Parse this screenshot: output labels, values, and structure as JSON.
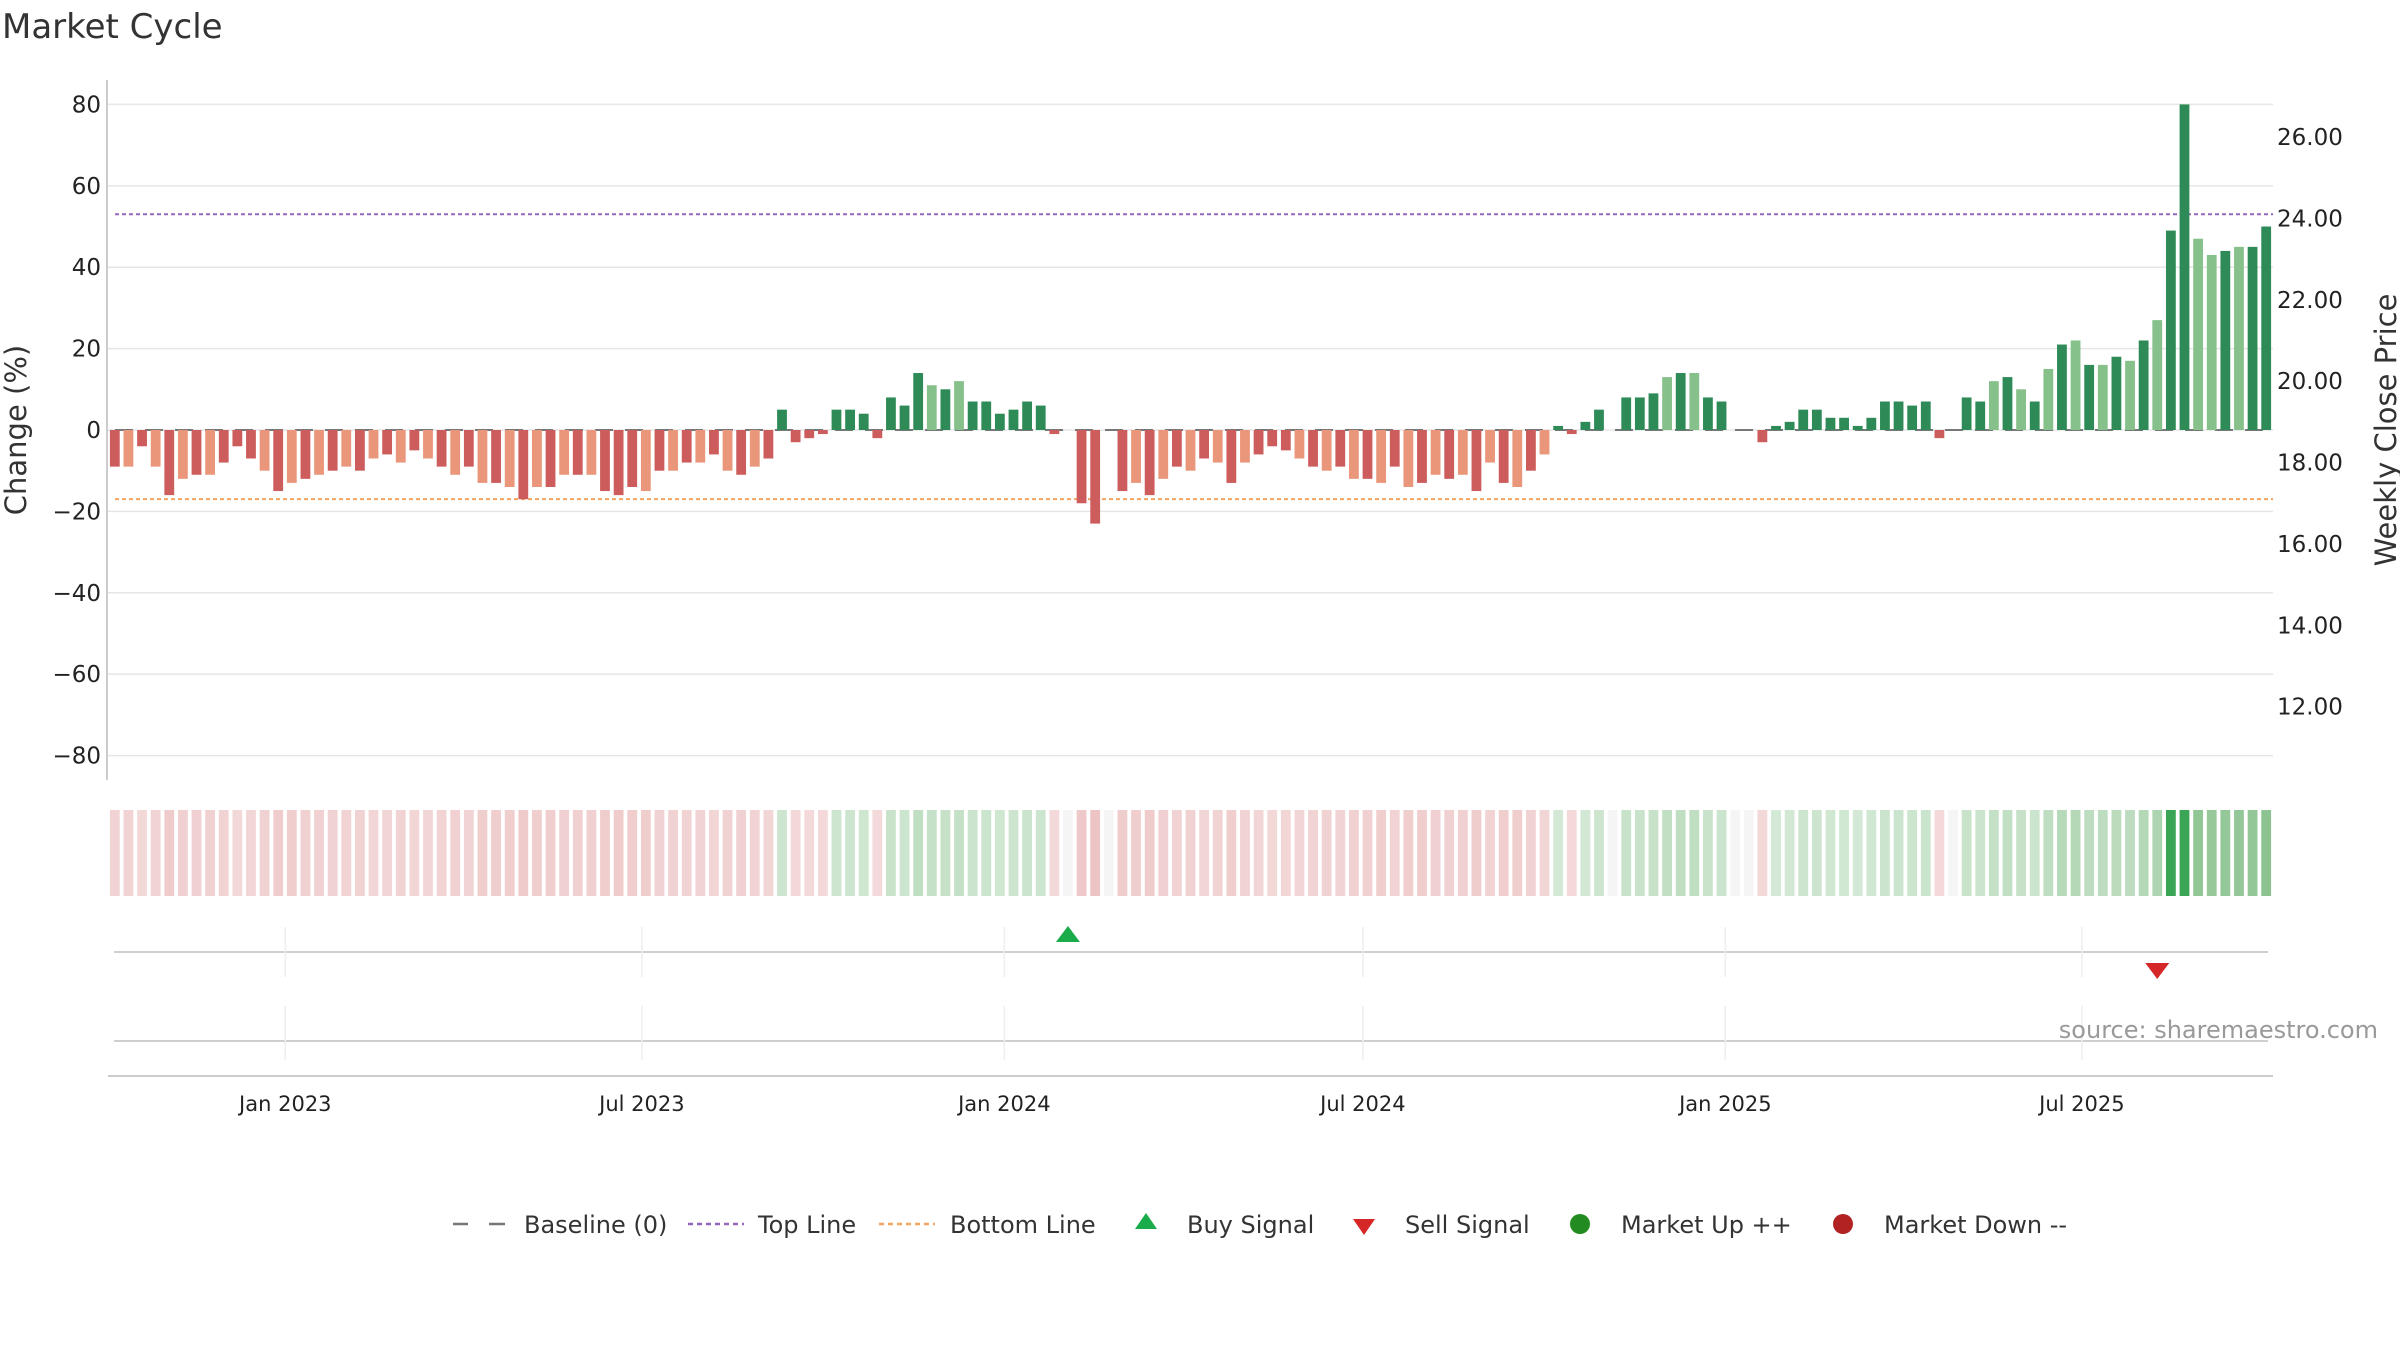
{
  "chart_data": {
    "type": "bar",
    "title": "Market Cycle",
    "ylabel_left": "Change (%)",
    "ylabel_right": "Weekly Close Price",
    "ylim_left": [
      -86,
      86
    ],
    "ylim_right": [
      10.2,
      27.4
    ],
    "left_ticks": [
      80,
      60,
      40,
      20,
      0,
      -20,
      -40,
      -60,
      -80
    ],
    "left_tick_labels": [
      "80",
      "60",
      "40",
      "20",
      "0",
      "−20",
      "−40",
      "−60",
      "−80"
    ],
    "right_ticks": [
      26,
      24,
      22,
      20,
      18,
      16,
      14,
      12
    ],
    "right_tick_labels": [
      "26.00",
      "24.00",
      "22.00",
      "20.00",
      "18.00",
      "16.00",
      "14.00",
      "12.00"
    ],
    "top_line": 53,
    "bottom_line": -17,
    "baseline": 0,
    "x_start": "2022-10-03",
    "x_end": "2025-10-06",
    "x_ticks": [
      {
        "date": "2023-01-01",
        "label": "Jan 2023"
      },
      {
        "date": "2023-07-01",
        "label": "Jul 2023"
      },
      {
        "date": "2024-01-01",
        "label": "Jan 2024"
      },
      {
        "date": "2024-07-01",
        "label": "Jul 2024"
      },
      {
        "date": "2025-01-01",
        "label": "Jan 2025"
      },
      {
        "date": "2025-07-01",
        "label": "Jul 2025"
      }
    ],
    "values": [
      -9,
      -9,
      -4,
      -9,
      -16,
      -12,
      -11,
      -11,
      -8,
      -4,
      -7,
      -10,
      -15,
      -13,
      -12,
      -11,
      -10,
      -9,
      -10,
      -7,
      -6,
      -8,
      -5,
      -7,
      -9,
      -11,
      -9,
      -13,
      -13,
      -14,
      -17,
      -14,
      -14,
      -11,
      -11,
      -11,
      -15,
      -16,
      -14,
      -15,
      -10,
      -10,
      -8,
      -8,
      -6,
      -10,
      -11,
      -9,
      -7,
      5,
      -3,
      -2,
      -1,
      5,
      5,
      4,
      -2,
      8,
      6,
      14,
      11,
      10,
      12,
      7,
      7,
      4,
      5,
      7,
      6,
      -1,
      0,
      -18,
      -23,
      0,
      -15,
      -13,
      -16,
      -12,
      -9,
      -10,
      -7,
      -8,
      -13,
      -8,
      -6,
      -4,
      -5,
      -7,
      -9,
      -10,
      -9,
      -12,
      -12,
      -13,
      -9,
      -14,
      -13,
      -11,
      -12,
      -11,
      -15,
      -8,
      -13,
      -14,
      -10,
      -6,
      1,
      -1,
      2,
      5,
      0,
      8,
      8,
      9,
      13,
      14,
      14,
      8,
      7,
      0,
      0,
      -3,
      1,
      2,
      5,
      5,
      3,
      3,
      1,
      3,
      7,
      7,
      6,
      7,
      -2,
      0,
      8,
      7,
      12,
      13,
      10,
      7,
      15,
      21,
      22,
      16,
      16,
      18,
      17,
      22,
      27,
      49,
      80,
      47,
      43,
      44,
      45,
      45,
      50
    ],
    "buy_signals": [
      {
        "index": 70
      }
    ],
    "sell_signals": [
      {
        "index": 150
      }
    ],
    "legend": [
      "Baseline (0)",
      "Top Line",
      "Bottom Line",
      "Buy Signal",
      "Sell Signal",
      "Market Up ++",
      "Market Down --"
    ]
  },
  "colors": {
    "up_strong": "#2e8b57",
    "up_light": "#86c08a",
    "down_strong": "#cd5c5c",
    "down_light": "#e9967a",
    "top_line": "#9467bd",
    "bottom_line": "#f4a460",
    "buy": "#1aab4b",
    "sell": "#d62728",
    "market_up": "#228b22",
    "market_down": "#b22222",
    "grid": "#e6e6e6",
    "baseline": "#777777"
  },
  "source": "source: sharemaestro.com"
}
